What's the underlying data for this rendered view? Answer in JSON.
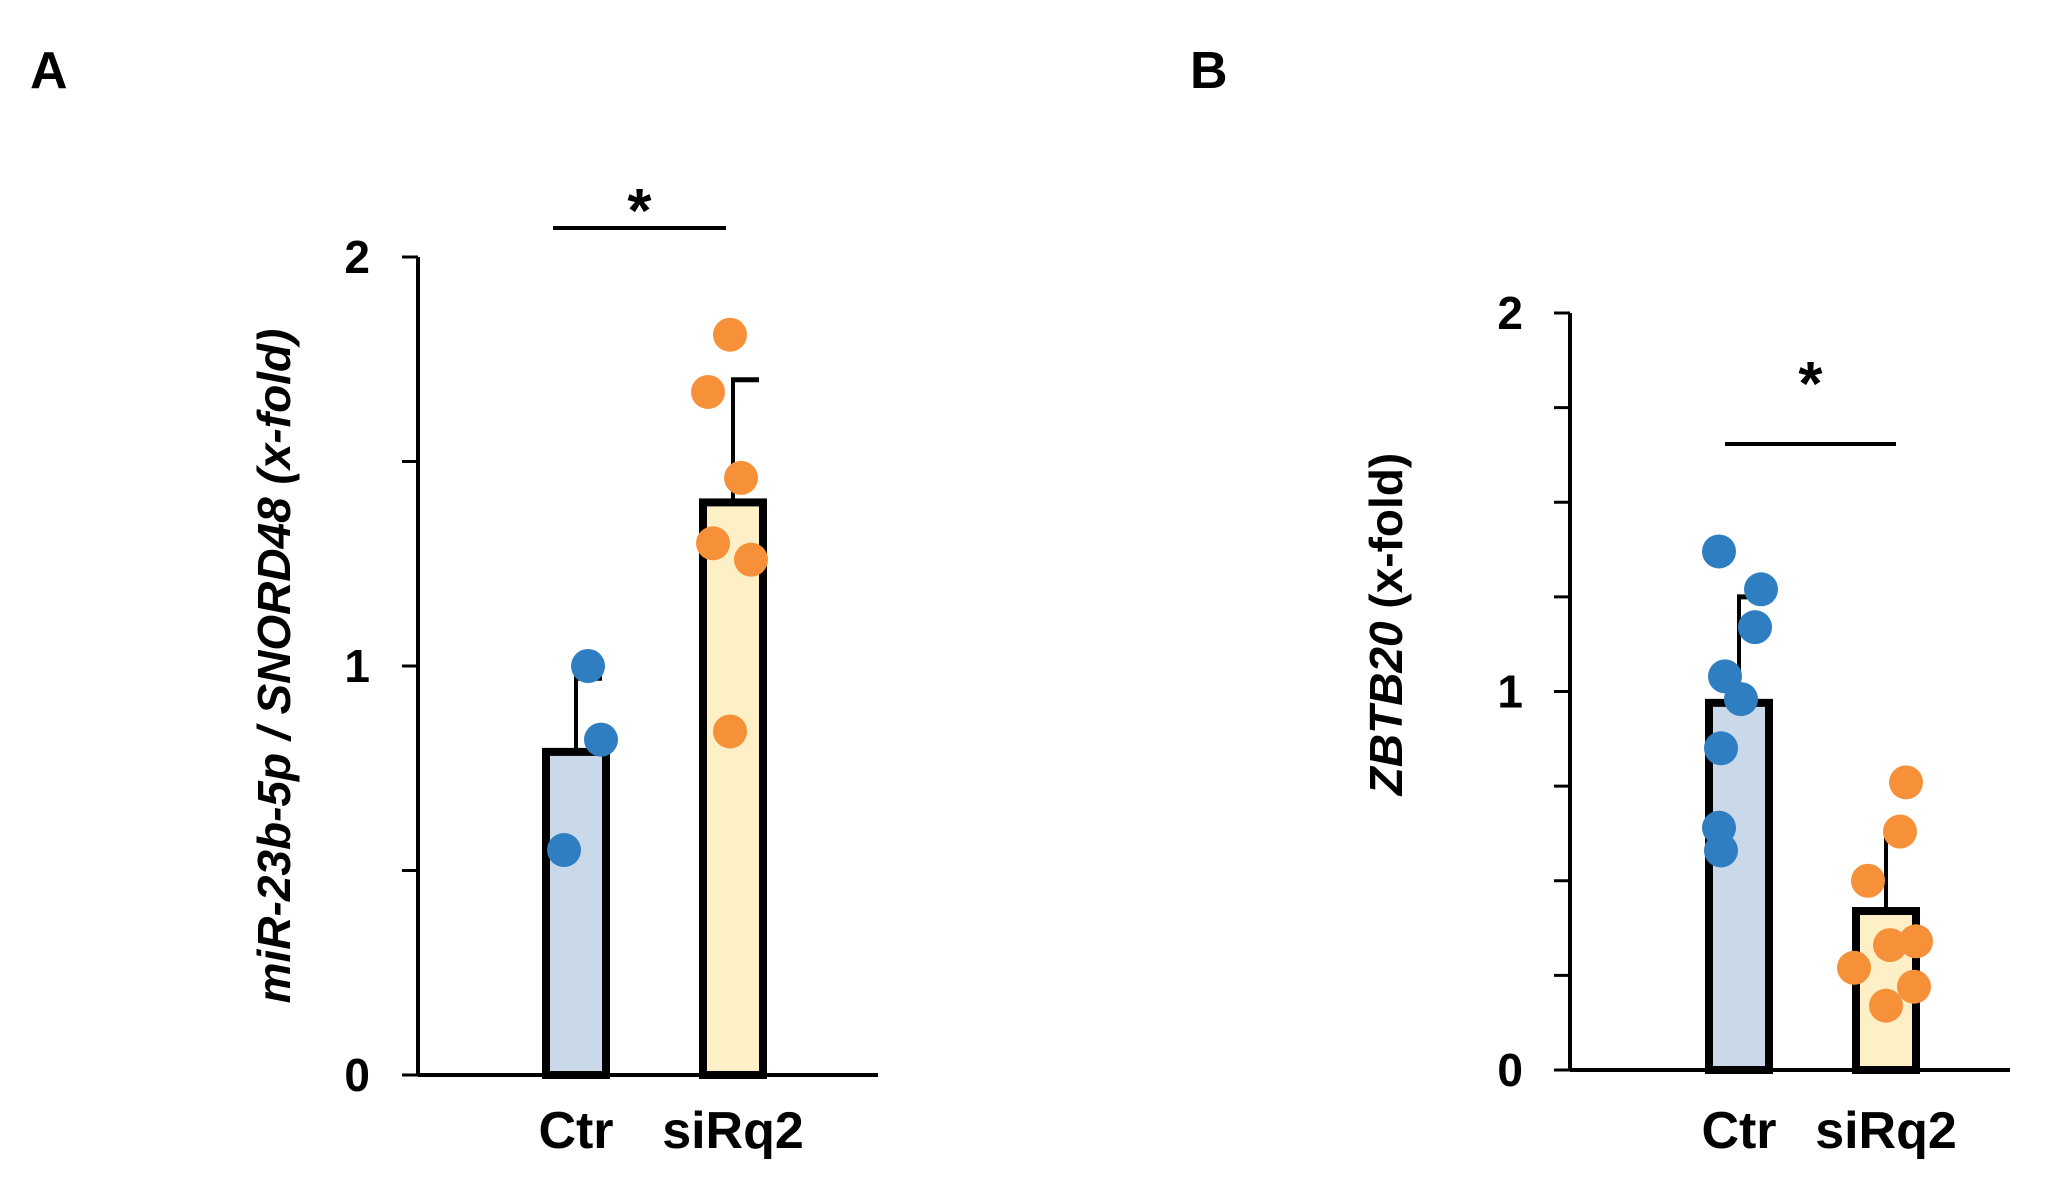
{
  "colors": {
    "ctr_bar": "#c9d9ea",
    "sirq2_bar": "#fdefc6",
    "ctr_point": "#2f7ec1",
    "sirq2_point": "#f6913a",
    "axis": "#000000"
  },
  "chart_data": [
    {
      "type": "bar",
      "panel_label": "A",
      "ylabel_parts": [
        "miR-23b-5p",
        " / ",
        "SNORD48",
        " (x-fold)"
      ],
      "categories": [
        "Ctr",
        "siRq2"
      ],
      "values": [
        0.79,
        1.4
      ],
      "errors": [
        0.18,
        0.3
      ],
      "points": [
        [
          1.0,
          0.82,
          0.55
        ],
        [
          1.81,
          1.67,
          1.46,
          1.3,
          1.26,
          0.84
        ]
      ],
      "ylim": [
        0,
        2
      ],
      "yticks": [
        0,
        0.5,
        1,
        1.5,
        2
      ],
      "ytick_labels": [
        "0",
        "",
        "1",
        "",
        "2"
      ],
      "significance": "*"
    },
    {
      "type": "bar",
      "panel_label": "B",
      "ylabel_parts": [
        "ZBTB20",
        " (x-fold)"
      ],
      "categories": [
        "Ctr",
        "siRq2"
      ],
      "values": [
        0.97,
        0.42
      ],
      "errors": [
        0.28,
        0.19
      ],
      "points": [
        [
          1.37,
          1.27,
          1.17,
          1.04,
          0.98,
          0.85,
          0.64,
          0.58
        ],
        [
          0.76,
          0.63,
          0.5,
          0.34,
          0.33,
          0.27,
          0.22,
          0.17
        ]
      ],
      "ylim": [
        0,
        2
      ],
      "yticks": [
        0,
        0.25,
        0.5,
        0.75,
        1,
        1.25,
        1.5,
        1.75,
        2
      ],
      "ytick_labels": [
        "0",
        "",
        "",
        "",
        "1",
        "",
        "",
        "",
        "2"
      ],
      "significance": "*"
    }
  ]
}
